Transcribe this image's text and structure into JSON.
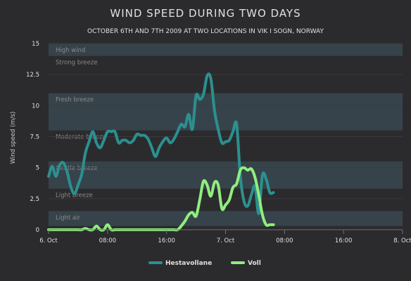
{
  "colors": {
    "background": "#2b2b2e",
    "band": "#37434a",
    "series1": "#2b908f",
    "series2": "#90ee7e"
  },
  "chart_data": {
    "type": "line",
    "title": "WIND SPEED DURING TWO DAYS",
    "subtitle": "OCTOBER 6TH AND 7TH 2009 AT TWO LOCATIONS IN VIK I SOGN, NORWAY",
    "ylabel": "Wind speed (m/s)",
    "xlabel": "",
    "ylim": [
      0,
      15
    ],
    "xlim": [
      0,
      48
    ],
    "y_ticks": [
      {
        "value": 0,
        "label": "0"
      },
      {
        "value": 2.5,
        "label": "2.5"
      },
      {
        "value": 5,
        "label": "5"
      },
      {
        "value": 7.5,
        "label": "7.5"
      },
      {
        "value": 10,
        "label": "10"
      },
      {
        "value": 12.5,
        "label": "12.5"
      },
      {
        "value": 15,
        "label": "15"
      }
    ],
    "x_ticks": [
      {
        "value": 0,
        "label": "6. Oct"
      },
      {
        "value": 8,
        "label": "08:00"
      },
      {
        "value": 16,
        "label": "16:00"
      },
      {
        "value": 24,
        "label": "7. Oct"
      },
      {
        "value": 32,
        "label": "08:00"
      },
      {
        "value": 40,
        "label": "16:00"
      },
      {
        "value": 48,
        "label": "8. Oct"
      }
    ],
    "bands": [
      {
        "from": 0.3,
        "to": 1.5,
        "label": "Light air",
        "shaded": true
      },
      {
        "from": 1.5,
        "to": 3.3,
        "label": "Light breeze",
        "shaded": false
      },
      {
        "from": 3.3,
        "to": 5.5,
        "label": "Gentle breeze",
        "shaded": true
      },
      {
        "from": 5.5,
        "to": 8,
        "label": "Moderate breeze",
        "shaded": false
      },
      {
        "from": 8,
        "to": 11,
        "label": "Fresh breeze",
        "shaded": true
      },
      {
        "from": 11,
        "to": 14,
        "label": "Strong breeze",
        "shaded": false
      },
      {
        "from": 14,
        "to": 15,
        "label": "High wind",
        "shaded": true
      }
    ],
    "x_interval_hours": 0.5,
    "series": [
      {
        "name": "Hestavollane",
        "color": "#2b908f",
        "values": [
          4.3,
          5.1,
          4.3,
          5.2,
          5.4,
          4.7,
          3.5,
          2.9,
          3.6,
          4.5,
          6.2,
          7.1,
          7.9,
          7.0,
          6.6,
          7.2,
          7.9,
          7.9,
          7.9,
          7.0,
          7.2,
          7.2,
          7.0,
          7.2,
          7.7,
          7.6,
          7.6,
          7.3,
          6.6,
          5.9,
          6.6,
          7.1,
          7.4,
          7.0,
          7.3,
          7.9,
          8.5,
          8.3,
          9.3,
          8.1,
          10.8,
          10.5,
          10.9,
          12.4,
          12.2,
          9.6,
          8.1,
          7.0,
          7.1,
          7.2,
          7.9,
          8.5,
          4.3,
          2.3,
          1.9,
          2.8,
          3.5,
          1.3,
          4.4,
          4.1,
          3.0,
          3.0
        ]
      },
      {
        "name": "Voll",
        "color": "#90ee7e",
        "values": [
          0,
          0,
          0,
          0,
          0,
          0,
          0,
          0,
          0,
          0,
          0.1,
          0,
          0,
          0.3,
          0,
          0,
          0.4,
          0,
          0,
          0,
          0,
          0,
          0,
          0,
          0,
          0,
          0,
          0,
          0,
          0,
          0,
          0,
          0,
          0,
          0,
          0,
          0.3,
          0.7,
          1.2,
          1.4,
          1.1,
          2.4,
          3.9,
          3.6,
          2.7,
          3.8,
          3.6,
          1.7,
          2.0,
          2.4,
          3.4,
          3.7,
          4.8,
          5.0,
          4.8,
          4.9,
          4.2,
          2.8,
          1.2,
          0.4,
          0.4,
          0.4
        ]
      }
    ],
    "legend": {
      "position": "bottom-center",
      "items": [
        {
          "name": "Hestavollane",
          "color": "#2b908f"
        },
        {
          "name": "Voll",
          "color": "#90ee7e"
        }
      ]
    }
  }
}
